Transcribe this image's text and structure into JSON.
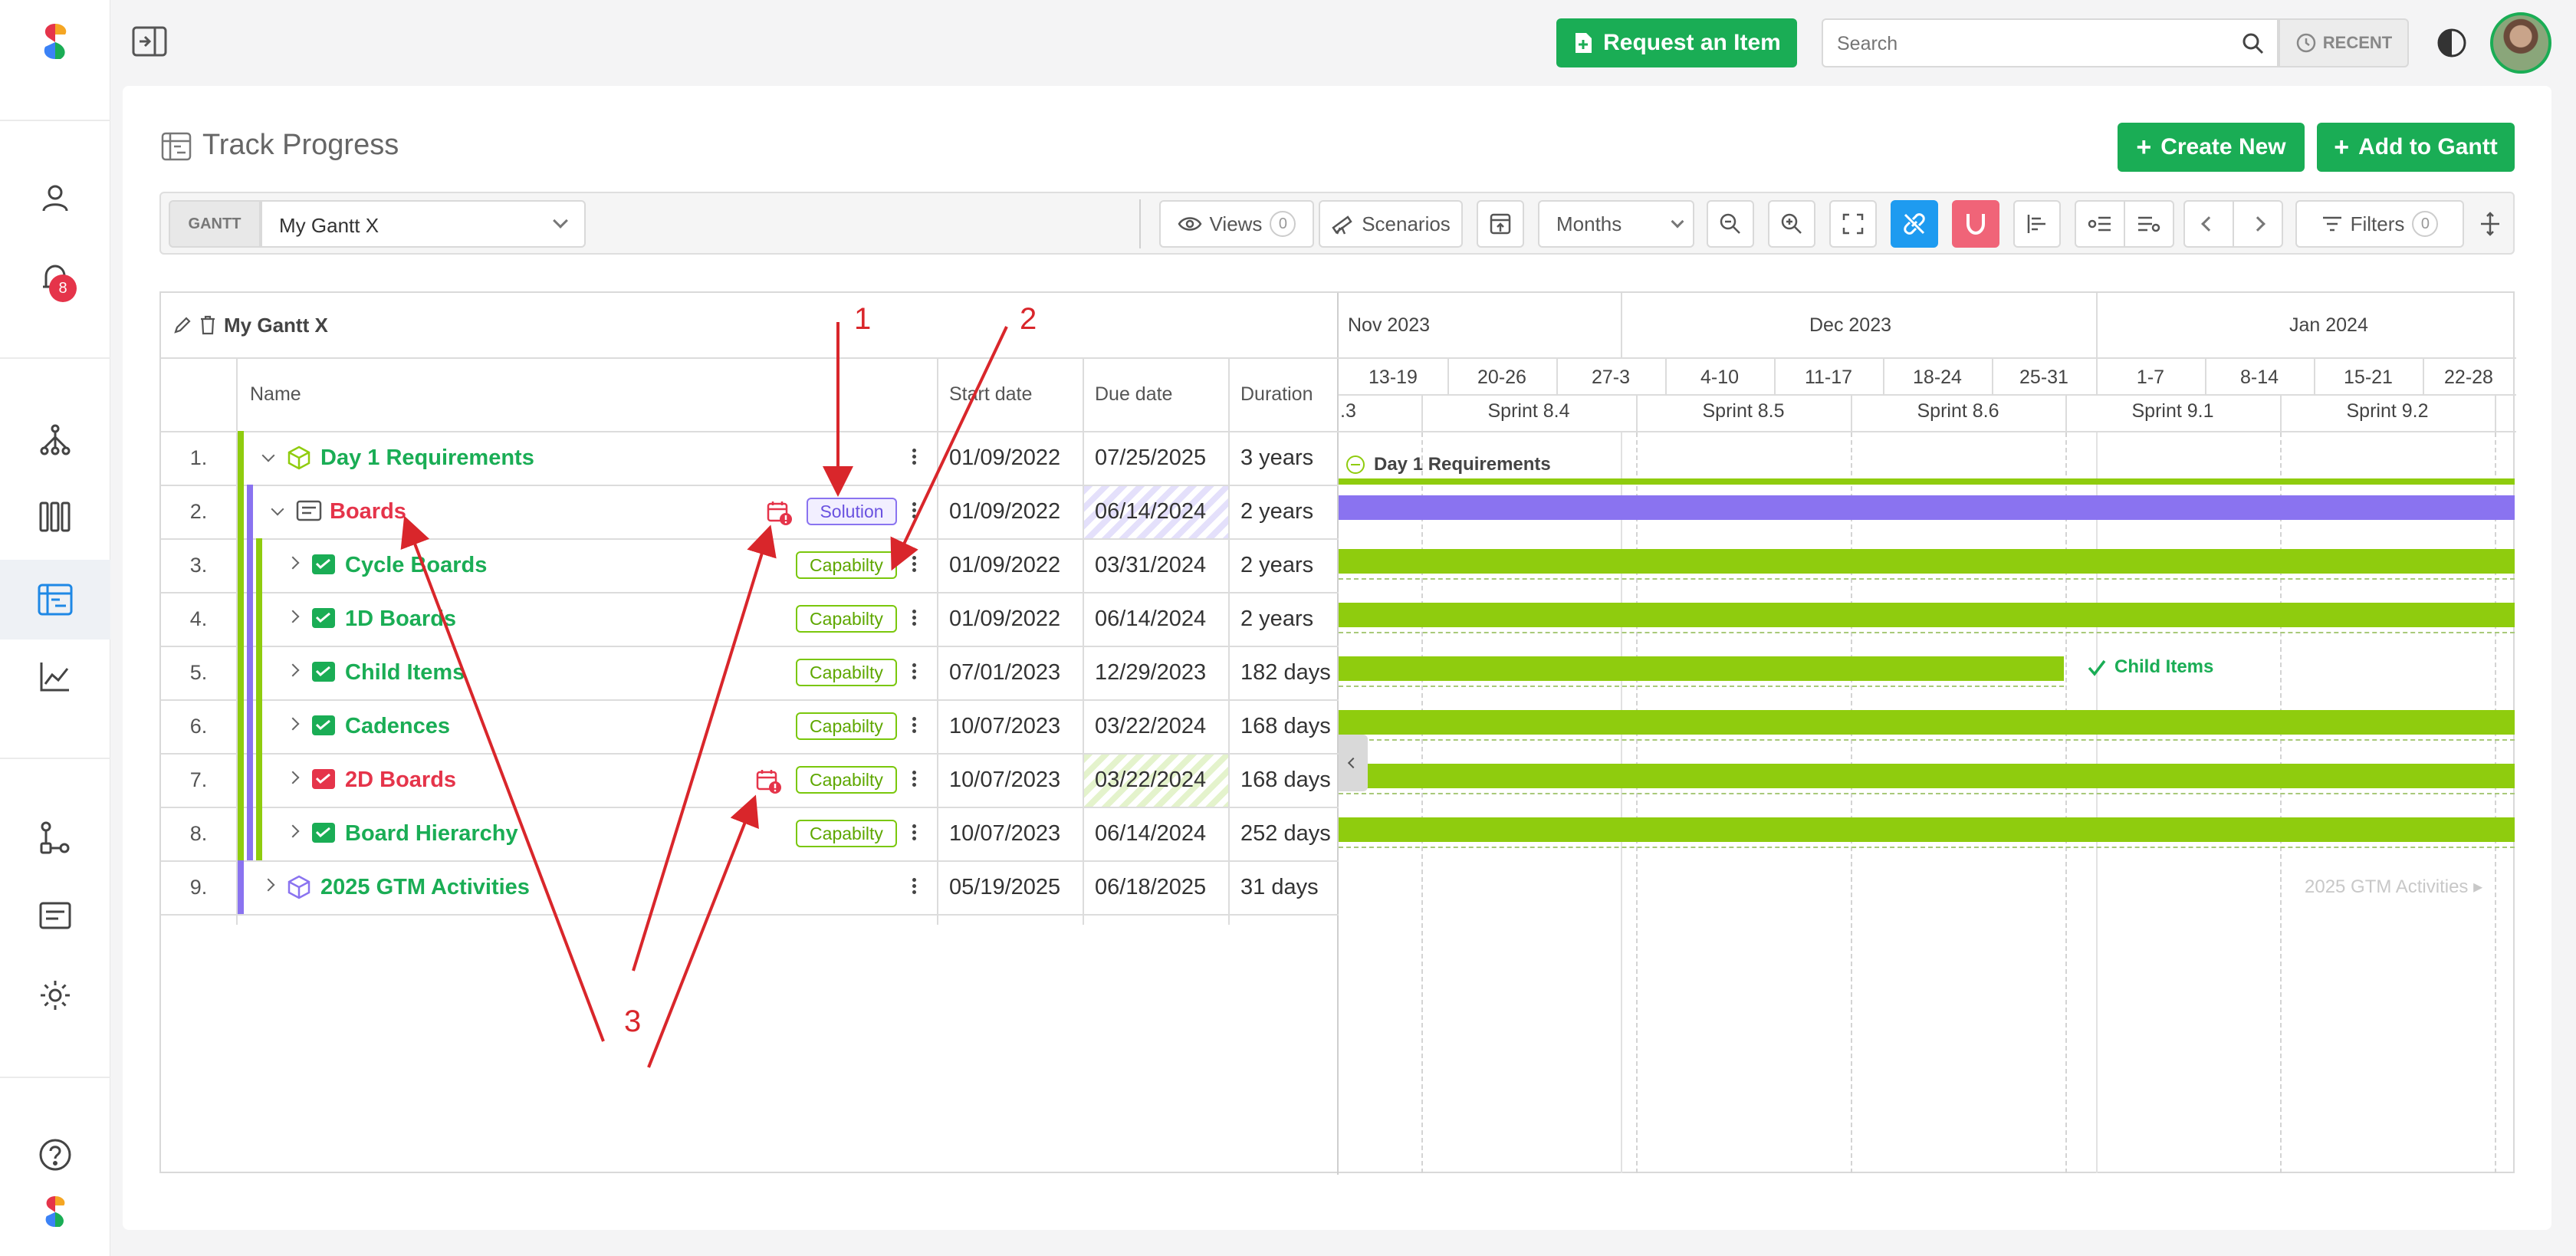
{
  "topbar": {
    "request_label": "Request an Item",
    "search_placeholder": "Search",
    "recent_label": "RECENT"
  },
  "sidebar": {
    "notification_count": "8"
  },
  "page": {
    "title": "Track Progress",
    "create_new": "Create New",
    "add_to_gantt": "Add to Gantt"
  },
  "toolbar": {
    "gantt_tag": "GANTT",
    "gantt_select": "My Gantt X",
    "views_label": "Views",
    "views_count": "0",
    "scenarios_label": "Scenarios",
    "scale_select": "Months",
    "filters_label": "Filters",
    "filters_count": "0"
  },
  "grid": {
    "title": "My Gantt X",
    "columns": {
      "name": "Name",
      "start": "Start date",
      "due": "Due date",
      "duration": "Duration"
    },
    "rows": [
      {
        "num": "1.",
        "name": "Day 1 Requirements",
        "start": "01/09/2022",
        "due": "07/25/2025",
        "duration": "3 years"
      },
      {
        "num": "2.",
        "name": "Boards",
        "badge": "Solution",
        "start": "01/09/2022",
        "due": "06/14/2024",
        "duration": "2 years"
      },
      {
        "num": "3.",
        "name": "Cycle Boards",
        "badge": "Capabilty",
        "start": "01/09/2022",
        "due": "03/31/2024",
        "duration": "2 years"
      },
      {
        "num": "4.",
        "name": "1D Boards",
        "badge": "Capabilty",
        "start": "01/09/2022",
        "due": "06/14/2024",
        "duration": "2 years"
      },
      {
        "num": "5.",
        "name": "Child Items",
        "badge": "Capabilty",
        "start": "07/01/2023",
        "due": "12/29/2023",
        "duration": "182 days"
      },
      {
        "num": "6.",
        "name": "Cadences",
        "badge": "Capabilty",
        "start": "10/07/2023",
        "due": "03/22/2024",
        "duration": "168 days"
      },
      {
        "num": "7.",
        "name": "2D Boards",
        "badge": "Capabilty",
        "start": "10/07/2023",
        "due": "03/22/2024",
        "duration": "168 days"
      },
      {
        "num": "8.",
        "name": "Board Hierarchy",
        "badge": "Capabilty",
        "start": "10/07/2023",
        "due": "06/14/2024",
        "duration": "252 days"
      },
      {
        "num": "9.",
        "name": "2025 GTM Activities",
        "start": "05/19/2025",
        "due": "06/18/2025",
        "duration": "31 days"
      }
    ]
  },
  "timeline": {
    "months": [
      "Nov 2023",
      "Dec 2023",
      "Jan 2024"
    ],
    "weeks": [
      "13-19",
      "20-26",
      "27-3",
      "4-10",
      "11-17",
      "18-24",
      "25-31",
      "1-7",
      "8-14",
      "15-21",
      "22-28"
    ],
    "sprint_partial": ".3",
    "sprints": [
      "Sprint 8.4",
      "Sprint 8.5",
      "Sprint 8.6",
      "Sprint 9.1",
      "Sprint 9.2"
    ],
    "bar_labels": {
      "day1": "Day 1 Requirements",
      "child_items": "Child Items",
      "gtm": "2025 GTM Activities"
    }
  },
  "annotations": {
    "a1": "1",
    "a2": "2",
    "a3": "3"
  },
  "colors": {
    "accent_green": "#1aad55",
    "bar_green": "#8fcc0e",
    "solution_purple": "#8a73f0",
    "alert_red": "#e5344a",
    "annotation_red": "#d9262b"
  }
}
